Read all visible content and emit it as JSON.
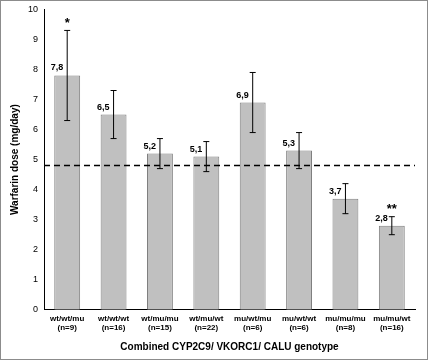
{
  "chart_data": {
    "type": "bar",
    "categories": [
      [
        "wt/wt/mu",
        "(n=9)"
      ],
      [
        "wt/wt/wt",
        "(n=16)"
      ],
      [
        "wt/mu/mu",
        "(n=15)"
      ],
      [
        "wt/mu/wt",
        "(n=22)"
      ],
      [
        "mu/wt/mu",
        "(n=6)"
      ],
      [
        "mu/wt/wt",
        "(n=6)"
      ],
      [
        "mu/mu/mu",
        "(n=8)"
      ],
      [
        "mu/mu/wt",
        "(n=16)"
      ]
    ],
    "values": [
      7.8,
      6.5,
      5.2,
      5.1,
      6.9,
      5.3,
      3.7,
      2.8
    ],
    "value_labels": [
      "7,8",
      "6,5",
      "5,2",
      "5,1",
      "6,9",
      "5,3",
      "3,7",
      "2,8"
    ],
    "errors": [
      1.5,
      0.8,
      0.5,
      0.5,
      1.0,
      0.6,
      0.5,
      0.3
    ],
    "significance": [
      "*",
      null,
      null,
      null,
      null,
      null,
      null,
      "**"
    ],
    "reference_line": 4.8,
    "x_label": "Combined CYP2C9/ VKORC1/ CALU genotype",
    "y_label": "Warfarin dose (mg/day)",
    "color": "#c0c0c0",
    "ylim": [
      0,
      10
    ],
    "yticks": [
      0,
      1,
      2,
      3,
      4,
      5,
      6,
      7,
      8,
      9,
      10
    ],
    "grid": false,
    "data_labels": true
  }
}
